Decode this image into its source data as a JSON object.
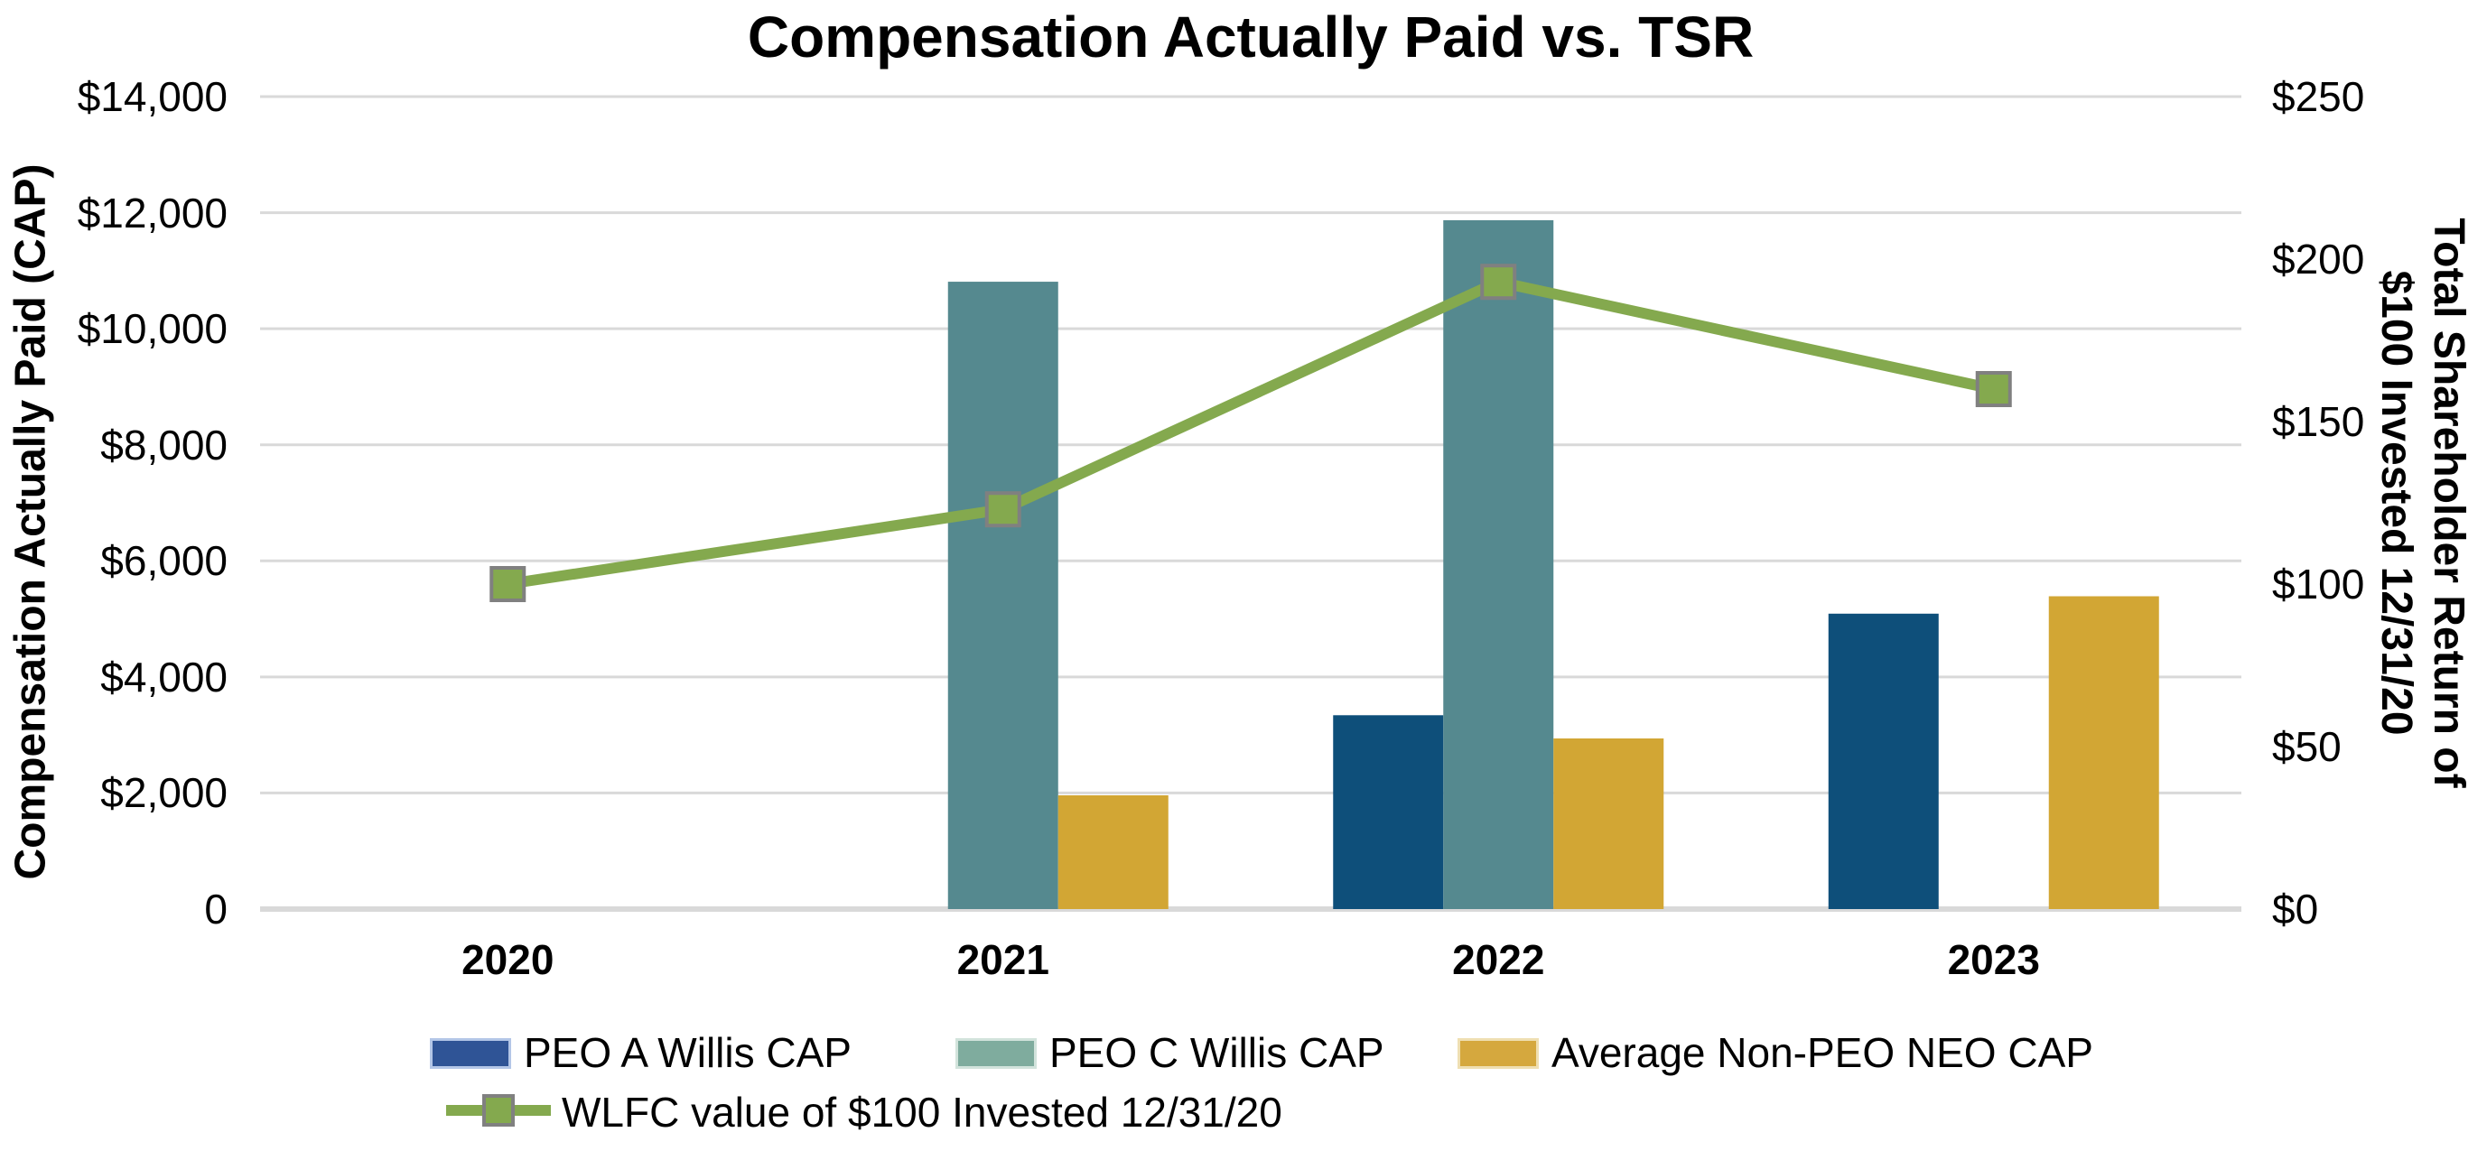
{
  "title": "Compensation Actually Paid vs. TSR",
  "left_axis": {
    "title": "Compensation Actually Paid (CAP)",
    "ticks": [
      "$14,000",
      "$12,000",
      "$10,000",
      "$8,000",
      "$6,000",
      "$4,000",
      "$2,000",
      "0"
    ],
    "min": 0,
    "max": 14000
  },
  "right_axis": {
    "title_line1": "Total Shareholder Return of",
    "title_line2": "$100 Invested 12/31/20",
    "ticks": [
      "$250",
      "$200",
      "$150",
      "$100",
      "$50",
      "$0"
    ],
    "min": 0,
    "max": 250
  },
  "x_axis": {
    "categories": [
      "2020",
      "2021",
      "2022",
      "2023"
    ]
  },
  "legend": [
    {
      "label": "PEO A Willis CAP",
      "type": "bar",
      "swatch_color": "#2F5496",
      "swatch_border": "#B3C6E7"
    },
    {
      "label": "PEO C Willis CAP",
      "type": "bar",
      "swatch_color": "#7FAC9E",
      "swatch_border": "#D2E3DC"
    },
    {
      "label": "Average Non-PEO NEO CAP",
      "type": "bar",
      "swatch_color": "#D5A83E",
      "swatch_border": "#EFDFB2"
    },
    {
      "label": "WLFC value of $100 Invested 12/31/20",
      "type": "line",
      "color": "#84A94E",
      "marker_fill": "#84A94E",
      "marker_border": "#808080"
    }
  ],
  "chart_data": {
    "type": "combo",
    "categories": [
      "2020",
      "2021",
      "2022",
      "2023"
    ],
    "series": [
      {
        "name": "PEO A Willis CAP",
        "type": "bar",
        "axis": "left",
        "color": "#0E4F7A",
        "values": [
          0,
          0,
          3340,
          5090
        ]
      },
      {
        "name": "PEO C Willis CAP",
        "type": "bar",
        "axis": "left",
        "color": "#55898F",
        "values": [
          0,
          10810,
          11870,
          0
        ]
      },
      {
        "name": "Average Non-PEO NEO CAP",
        "type": "bar",
        "axis": "left",
        "color": "#D2A634",
        "values": [
          0,
          1960,
          2940,
          5390
        ]
      },
      {
        "name": "WLFC value of $100 Invested 12/31/20",
        "type": "line",
        "axis": "right",
        "color": "#84A94E",
        "marker": "square",
        "marker_fill": "#84A94E",
        "marker_border": "#808080",
        "values": [
          100,
          123,
          193,
          160
        ]
      }
    ],
    "left_ylim": [
      0,
      14000
    ],
    "right_ylim": [
      0,
      250
    ],
    "grid": true,
    "gridline_color": "#D9D9D9",
    "axisline_color": "#D9D9D9",
    "legend_position": "bottom"
  }
}
